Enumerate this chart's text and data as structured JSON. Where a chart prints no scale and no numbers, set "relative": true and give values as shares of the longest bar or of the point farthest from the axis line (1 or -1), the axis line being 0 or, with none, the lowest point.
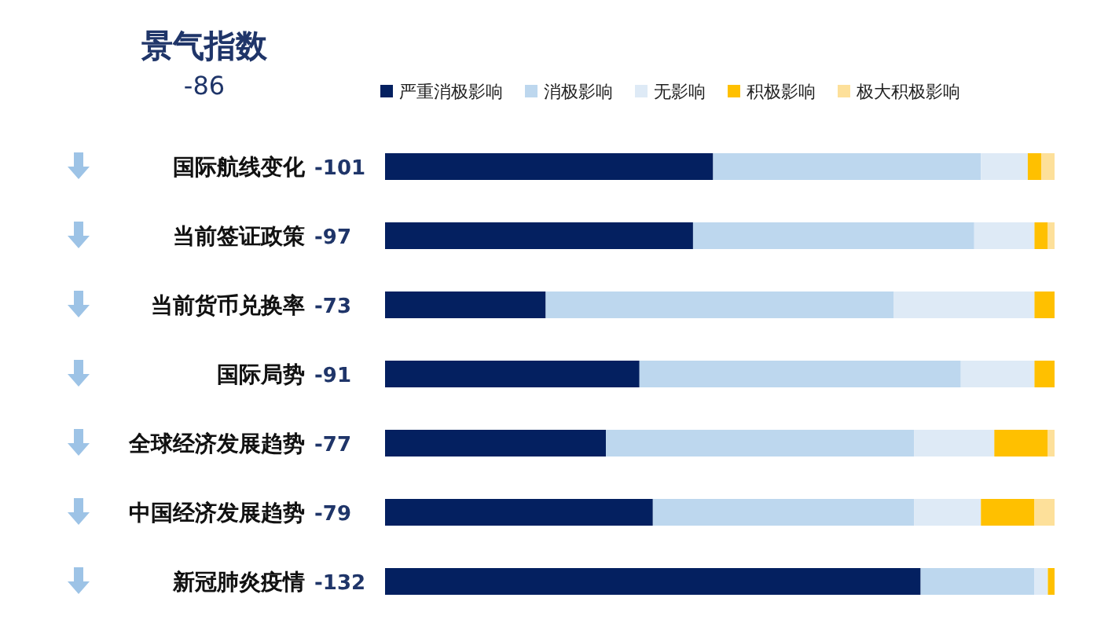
{
  "chart_data": {
    "type": "bar",
    "orientation": "horizontal",
    "stacked": true,
    "relative": true,
    "title": "景气指数",
    "subtitle": "-86",
    "categories": [
      "国际航线变化",
      "当前签证政策",
      "当前货币兑换率",
      "国际局势",
      "全球经济发展趋势",
      "中国经济发展趋势",
      "新冠肺炎疫情"
    ],
    "series": [
      {
        "name": "严重消极影响",
        "color": "#042060",
        "values": [
          0.49,
          0.46,
          0.24,
          0.38,
          0.33,
          0.4,
          0.8
        ]
      },
      {
        "name": "消极影响",
        "color": "#bdd7ee",
        "values": [
          0.4,
          0.42,
          0.52,
          0.48,
          0.46,
          0.39,
          0.17
        ]
      },
      {
        "name": "无影响",
        "color": "#deeaf6",
        "values": [
          0.07,
          0.09,
          0.21,
          0.11,
          0.12,
          0.1,
          0.02
        ]
      },
      {
        "name": "积极影响",
        "color": "#ffc000",
        "values": [
          0.02,
          0.02,
          0.03,
          0.03,
          0.08,
          0.08,
          0.01
        ]
      },
      {
        "name": "极大积极影响",
        "color": "#fde09a",
        "values": [
          0.02,
          0.01,
          0,
          0,
          0.01,
          0.03,
          0
        ]
      }
    ],
    "annotations": [
      "-101",
      "-97",
      "-73",
      "-91",
      "-77",
      "-79",
      "-132"
    ],
    "legend": "top",
    "grid": false
  }
}
